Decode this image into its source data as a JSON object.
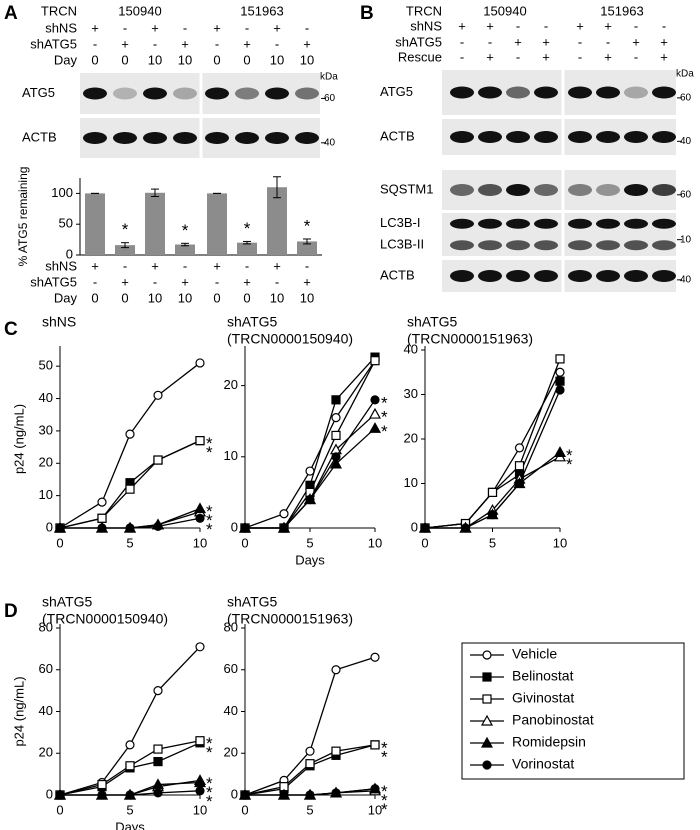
{
  "panel_labels": [
    "A",
    "B",
    "C",
    "D"
  ],
  "panel_a": {
    "trcn_label": "TRCN",
    "trcn": [
      "150940",
      "151963"
    ],
    "rows": [
      {
        "label": "shNS",
        "values": [
          "+",
          "-",
          "+",
          "-",
          "+",
          "-",
          "+",
          "-"
        ]
      },
      {
        "label": "shATG5",
        "values": [
          "-",
          "+",
          "-",
          "+",
          "-",
          "+",
          "-",
          "+"
        ]
      },
      {
        "label": "Day",
        "values": [
          0,
          0,
          10,
          10,
          0,
          0,
          10,
          10
        ]
      }
    ],
    "kda_label": "kDa",
    "blots": [
      {
        "labels": [
          "ATG5"
        ],
        "kda": "60"
      },
      {
        "labels": [
          "ACTB"
        ],
        "kda": "40"
      }
    ]
  },
  "panel_b": {
    "trcn_label": "TRCN",
    "trcn": [
      "150940",
      "151963"
    ],
    "rows": [
      {
        "label": "shNS",
        "values": [
          "+",
          "+",
          "-",
          "-",
          "+",
          "+",
          "-",
          "-"
        ]
      },
      {
        "label": "shATG5",
        "values": [
          "-",
          "-",
          "+",
          "+",
          "-",
          "-",
          "+",
          "+"
        ]
      },
      {
        "label": "Rescue",
        "values": [
          "-",
          "+",
          "-",
          "+",
          "-",
          "+",
          "-",
          "+"
        ]
      }
    ],
    "kda_label": "kDa",
    "blots": [
      {
        "labels": [
          "ATG5"
        ],
        "kda": "60"
      },
      {
        "labels": [
          "ACTB"
        ],
        "kda": "40"
      },
      {
        "labels": [
          "SQSTM1"
        ],
        "kda": "60"
      },
      {
        "labels": [
          "LC3B-I",
          "LC3B-II"
        ],
        "kda": "10"
      },
      {
        "labels": [
          "ACTB"
        ],
        "kda": "40"
      }
    ]
  },
  "chart_data": [
    {
      "type": "bar",
      "ylabel": "% ATG5 remaining",
      "categories": [
        null,
        null,
        null,
        null,
        null,
        null,
        null,
        null
      ],
      "values": [
        100,
        16,
        101,
        17,
        100,
        20,
        110,
        22
      ],
      "errors": [
        0,
        4,
        6,
        2,
        0,
        2,
        17,
        4
      ],
      "annotations": [
        null,
        "*",
        null,
        "*",
        null,
        "*",
        null,
        "*"
      ],
      "color": "#8c8c8c",
      "ylim": [
        0,
        125
      ],
      "yticks": [
        0,
        50,
        100
      ],
      "conditions": [
        {
          "label": "shNS",
          "values": [
            "+",
            "-",
            "+",
            "-",
            "+",
            "-",
            "+",
            "-"
          ]
        },
        {
          "label": "shATG5",
          "values": [
            "-",
            "+",
            "-",
            "+",
            "-",
            "+",
            "-",
            "+"
          ]
        },
        {
          "label": "Day",
          "values": [
            0,
            0,
            10,
            10,
            0,
            0,
            10,
            10
          ]
        }
      ]
    },
    {
      "type": "line",
      "title": "shNS",
      "ylabel": "p24 (ng/mL)",
      "x": [
        0,
        3,
        5,
        7,
        10
      ],
      "xlim": [
        0,
        10
      ],
      "xticks": [
        0,
        5,
        10
      ],
      "ylim": [
        0,
        55
      ],
      "yticks": [
        0,
        10,
        20,
        30,
        40,
        50
      ],
      "series": [
        {
          "name": "Vehicle",
          "color": "#000000",
          "marker": "circle",
          "filled": false,
          "values": [
            0,
            8,
            29,
            41,
            51
          ]
        },
        {
          "name": "Belinostat",
          "color": "#000000",
          "marker": "square",
          "filled": true,
          "values": [
            0,
            3,
            14,
            21,
            27
          ],
          "annotation": "*"
        },
        {
          "name": "Givinostat",
          "color": "#000000",
          "marker": "square",
          "filled": false,
          "values": [
            0,
            3,
            12,
            21,
            27
          ],
          "annotation": "*"
        },
        {
          "name": "Panobinostat",
          "color": "#000000",
          "marker": "triangle",
          "filled": false,
          "values": [
            0,
            0,
            0,
            1,
            5
          ],
          "annotation": "*"
        },
        {
          "name": "Romidepsin",
          "color": "#000000",
          "marker": "triangle",
          "filled": true,
          "values": [
            0,
            0,
            0,
            1,
            6
          ],
          "annotation": "*"
        },
        {
          "name": "Vorinostat",
          "color": "#000000",
          "marker": "circle",
          "filled": true,
          "values": [
            0,
            0,
            0,
            0.5,
            3
          ],
          "annotation": "*"
        }
      ]
    },
    {
      "type": "line",
      "title": "shATG5",
      "subtitle": "(TRCN0000150940)",
      "xlabel": "Days",
      "x": [
        0,
        3,
        5,
        7,
        10
      ],
      "xlim": [
        0,
        10
      ],
      "xticks": [
        0,
        5,
        10
      ],
      "ylim": [
        0,
        25
      ],
      "yticks": [
        0,
        10,
        20
      ],
      "series": [
        {
          "name": "Vehicle",
          "color": "#000000",
          "marker": "circle",
          "filled": false,
          "values": [
            0,
            2,
            8,
            15.5,
            23.5
          ]
        },
        {
          "name": "Belinostat",
          "color": "#000000",
          "marker": "square",
          "filled": true,
          "values": [
            0,
            0,
            6,
            18,
            24
          ]
        },
        {
          "name": "Givinostat",
          "color": "#000000",
          "marker": "square",
          "filled": false,
          "values": [
            0,
            0,
            5,
            13,
            23.5
          ]
        },
        {
          "name": "Panobinostat",
          "color": "#000000",
          "marker": "triangle",
          "filled": false,
          "values": [
            0,
            0,
            4,
            11,
            16
          ],
          "annotation": "*"
        },
        {
          "name": "Romidepsin",
          "color": "#000000",
          "marker": "triangle",
          "filled": true,
          "values": [
            0,
            0,
            4,
            9,
            14
          ],
          "annotation": "*"
        },
        {
          "name": "Vorinostat",
          "color": "#000000",
          "marker": "circle",
          "filled": true,
          "values": [
            0,
            0,
            4,
            10,
            18
          ],
          "annotation": "*"
        }
      ]
    },
    {
      "type": "line",
      "title": "shATG5",
      "subtitle": "(TRCN0000151963)",
      "x": [
        0,
        3,
        5,
        7,
        10
      ],
      "xlim": [
        0,
        10
      ],
      "xticks": [
        0,
        5,
        10
      ],
      "ylim": [
        0,
        40
      ],
      "yticks": [
        0,
        10,
        20,
        30,
        40
      ],
      "series": [
        {
          "name": "Vehicle",
          "color": "#000000",
          "marker": "circle",
          "filled": false,
          "values": [
            0,
            1,
            8,
            18,
            35
          ]
        },
        {
          "name": "Belinostat",
          "color": "#000000",
          "marker": "square",
          "filled": true,
          "values": [
            0,
            1,
            8,
            12,
            33
          ]
        },
        {
          "name": "Givinostat",
          "color": "#000000",
          "marker": "square",
          "filled": false,
          "values": [
            0,
            1,
            8,
            14,
            38
          ]
        },
        {
          "name": "Panobinostat",
          "color": "#000000",
          "marker": "triangle",
          "filled": false,
          "values": [
            0,
            0,
            4,
            11,
            16
          ],
          "annotation": "*"
        },
        {
          "name": "Romidepsin",
          "color": "#000000",
          "marker": "triangle",
          "filled": true,
          "values": [
            0,
            0,
            3,
            10,
            17
          ],
          "annotation": "*"
        },
        {
          "name": "Vorinostat",
          "color": "#000000",
          "marker": "circle",
          "filled": true,
          "values": [
            0,
            0,
            3,
            10,
            31
          ]
        }
      ]
    },
    {
      "type": "line",
      "title": "shATG5",
      "subtitle": "(TRCN0000150940)",
      "ylabel": "p24 (ng/mL)",
      "xlabel": "Days",
      "legend": "right",
      "x": [
        0,
        3,
        5,
        7,
        10
      ],
      "xlim": [
        0,
        10
      ],
      "xticks": [
        0,
        5,
        10
      ],
      "ylim": [
        0,
        80
      ],
      "yticks": [
        0,
        20,
        40,
        60,
        80
      ],
      "series": [
        {
          "name": "Vehicle",
          "color": "#000000",
          "marker": "circle",
          "filled": false,
          "values": [
            0,
            6,
            24,
            50,
            71
          ]
        },
        {
          "name": "Belinostat",
          "color": "#000000",
          "marker": "square",
          "filled": true,
          "values": [
            0,
            4,
            13,
            16,
            25
          ],
          "annotation": "*"
        },
        {
          "name": "Givinostat",
          "color": "#000000",
          "marker": "square",
          "filled": false,
          "values": [
            0,
            5,
            14,
            22,
            26
          ],
          "annotation": "*"
        },
        {
          "name": "Panobinostat",
          "color": "#000000",
          "marker": "triangle",
          "filled": false,
          "values": [
            0,
            0,
            0,
            4,
            7
          ],
          "annotation": "*"
        },
        {
          "name": "Romidepsin",
          "color": "#000000",
          "marker": "triangle",
          "filled": true,
          "values": [
            0,
            0,
            0,
            5,
            6
          ],
          "annotation": "*"
        },
        {
          "name": "Vorinostat",
          "color": "#000000",
          "marker": "circle",
          "filled": true,
          "values": [
            0,
            0,
            0,
            1,
            2
          ],
          "annotation": "*"
        }
      ]
    },
    {
      "type": "line",
      "title": "shATG5",
      "subtitle": "(TRCN0000151963)",
      "x": [
        0,
        3,
        5,
        7,
        10
      ],
      "xlim": [
        0,
        10
      ],
      "xticks": [
        0,
        5,
        10
      ],
      "ylim": [
        0,
        80
      ],
      "yticks": [
        0,
        20,
        40,
        60,
        80
      ],
      "series": [
        {
          "name": "Vehicle",
          "color": "#000000",
          "marker": "circle",
          "filled": false,
          "values": [
            0,
            7,
            21,
            60,
            66
          ]
        },
        {
          "name": "Belinostat",
          "color": "#000000",
          "marker": "square",
          "filled": true,
          "values": [
            0,
            3,
            14,
            19,
            24
          ],
          "annotation": "*"
        },
        {
          "name": "Givinostat",
          "color": "#000000",
          "marker": "square",
          "filled": false,
          "values": [
            0,
            4,
            15,
            21,
            24
          ],
          "annotation": "*"
        },
        {
          "name": "Panobinostat",
          "color": "#000000",
          "marker": "triangle",
          "filled": false,
          "values": [
            0,
            0,
            0,
            1,
            2
          ],
          "annotation": "*"
        },
        {
          "name": "Romidepsin",
          "color": "#000000",
          "marker": "triangle",
          "filled": true,
          "values": [
            0,
            0,
            0,
            1,
            3
          ],
          "annotation": "*"
        },
        {
          "name": "Vorinostat",
          "color": "#000000",
          "marker": "circle",
          "filled": true,
          "values": [
            0,
            0,
            0,
            1,
            3
          ],
          "annotation": "*"
        }
      ]
    }
  ]
}
